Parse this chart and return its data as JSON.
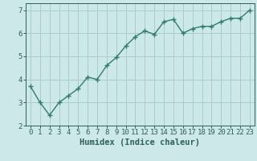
{
  "title": "",
  "xlabel": "Humidex (Indice chaleur)",
  "ylabel": "",
  "x_values": [
    0,
    1,
    2,
    3,
    4,
    5,
    6,
    7,
    8,
    9,
    10,
    11,
    12,
    13,
    14,
    15,
    16,
    17,
    18,
    19,
    20,
    21,
    22,
    23
  ],
  "y_values": [
    3.7,
    3.0,
    2.45,
    3.0,
    3.3,
    3.6,
    4.1,
    4.0,
    4.6,
    4.95,
    5.45,
    5.85,
    6.1,
    5.95,
    6.5,
    6.6,
    6.0,
    6.2,
    6.3,
    6.3,
    6.5,
    6.65,
    6.65,
    7.0
  ],
  "line_color": "#2e7d6e",
  "marker": "+",
  "marker_size": 4,
  "marker_lw": 1.0,
  "bg_color": "#cce8e8",
  "grid_color": "#aacccc",
  "ylim": [
    2,
    7.3
  ],
  "xlim": [
    -0.5,
    23.5
  ],
  "yticks": [
    2,
    3,
    4,
    5,
    6,
    7
  ],
  "xticks": [
    0,
    1,
    2,
    3,
    4,
    5,
    6,
    7,
    8,
    9,
    10,
    11,
    12,
    13,
    14,
    15,
    16,
    17,
    18,
    19,
    20,
    21,
    22,
    23
  ],
  "tick_color": "#2e5f5f",
  "label_fontsize": 7.5,
  "tick_fontsize": 6.5,
  "linewidth": 1.0
}
